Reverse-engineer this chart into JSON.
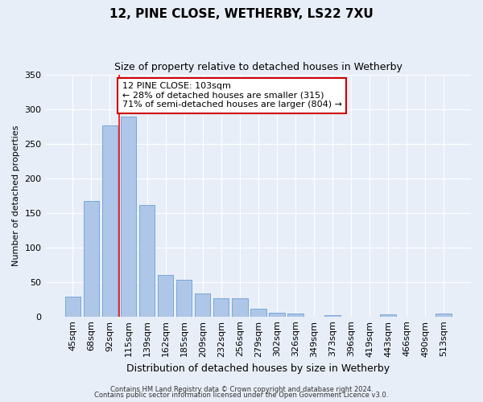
{
  "title": "12, PINE CLOSE, WETHERBY, LS22 7XU",
  "subtitle": "Size of property relative to detached houses in Wetherby",
  "xlabel": "Distribution of detached houses by size in Wetherby",
  "ylabel": "Number of detached properties",
  "categories": [
    "45sqm",
    "68sqm",
    "92sqm",
    "115sqm",
    "139sqm",
    "162sqm",
    "185sqm",
    "209sqm",
    "232sqm",
    "256sqm",
    "279sqm",
    "302sqm",
    "326sqm",
    "349sqm",
    "373sqm",
    "396sqm",
    "419sqm",
    "443sqm",
    "466sqm",
    "490sqm",
    "513sqm"
  ],
  "values": [
    29,
    167,
    277,
    290,
    161,
    60,
    53,
    33,
    26,
    26,
    11,
    5,
    4,
    0,
    2,
    0,
    0,
    3,
    0,
    0,
    4
  ],
  "bar_color": "#aec6e8",
  "bar_edge_color": "#6b9fd4",
  "red_line_x": 2.5,
  "annotation_title": "12 PINE CLOSE: 103sqm",
  "annotation_line1": "← 28% of detached houses are smaller (315)",
  "annotation_line2": "71% of semi-detached houses are larger (804) →",
  "annotation_box_color": "#ffffff",
  "annotation_box_edge": "#cc0000",
  "ylim": [
    0,
    350
  ],
  "yticks": [
    0,
    50,
    100,
    150,
    200,
    250,
    300,
    350
  ],
  "footer1": "Contains HM Land Registry data © Crown copyright and database right 2024.",
  "footer2": "Contains public sector information licensed under the Open Government Licence v3.0.",
  "bg_color": "#e8eef8",
  "plot_bg_color": "#e8eef8",
  "title_fontsize": 11,
  "subtitle_fontsize": 9,
  "ylabel_fontsize": 8,
  "xlabel_fontsize": 9,
  "tick_fontsize": 8,
  "ann_fontsize": 8,
  "footer_fontsize": 6
}
